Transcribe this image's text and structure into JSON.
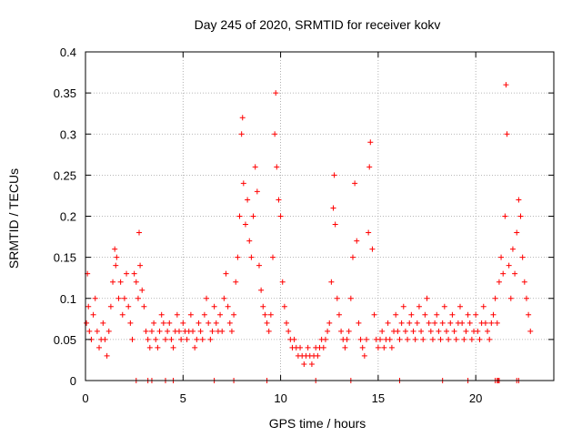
{
  "chart_data": {
    "type": "scatter",
    "title": "Day 245 of 2020, SRMTID for receiver kokv",
    "xlabel": "GPS time / hours",
    "ylabel": "SRMTID / TECUs",
    "xlim": [
      0,
      24
    ],
    "ylim": [
      0,
      0.4
    ],
    "xticks": [
      0,
      5,
      10,
      15,
      20
    ],
    "xtick_labels": [
      "0",
      "5",
      "10",
      "15",
      "20"
    ],
    "yticks": [
      0,
      0.05,
      0.1,
      0.15,
      0.2,
      0.25,
      0.3,
      0.35,
      0.4
    ],
    "ytick_labels": [
      "0",
      "0.05",
      "0.1",
      "0.15",
      "0.2",
      "0.25",
      "0.3",
      "0.35",
      "0.4"
    ],
    "grid": true,
    "marker": "+",
    "colors": {
      "marker": "#ff0000",
      "grid": "#a0a0a0",
      "axis": "#000000"
    },
    "series": [
      {
        "name": "SRMTID",
        "description_note": "dense cloud of points mostly 0.02-0.12 TECU with bursts near 1.5, 2.8, 8, 9.7, 12.8, 14.5 and 21.5 hours",
        "points": [
          [
            0.05,
            0.07
          ],
          [
            0.1,
            0.13
          ],
          [
            0.15,
            0.09
          ],
          [
            0.2,
            0.06
          ],
          [
            0.3,
            0.05
          ],
          [
            0.4,
            0.08
          ],
          [
            0.5,
            0.1
          ],
          [
            0.6,
            0.06
          ],
          [
            0.7,
            0.04
          ],
          [
            0.8,
            0.05
          ],
          [
            0.9,
            0.07
          ],
          [
            1.0,
            0.05
          ],
          [
            1.1,
            0.03
          ],
          [
            1.2,
            0.06
          ],
          [
            1.3,
            0.09
          ],
          [
            1.4,
            0.12
          ],
          [
            1.5,
            0.16
          ],
          [
            1.55,
            0.14
          ],
          [
            1.6,
            0.15
          ],
          [
            1.7,
            0.1
          ],
          [
            1.8,
            0.12
          ],
          [
            1.9,
            0.08
          ],
          [
            2.0,
            0.1
          ],
          [
            2.1,
            0.13
          ],
          [
            2.2,
            0.09
          ],
          [
            2.3,
            0.07
          ],
          [
            2.4,
            0.05
          ],
          [
            2.5,
            0.13
          ],
          [
            2.6,
            0.12
          ],
          [
            2.7,
            0.1
          ],
          [
            2.75,
            0.18
          ],
          [
            2.8,
            0.14
          ],
          [
            2.9,
            0.11
          ],
          [
            3.0,
            0.09
          ],
          [
            3.1,
            0.06
          ],
          [
            3.2,
            0.05
          ],
          [
            3.3,
            0.04
          ],
          [
            3.4,
            0.06
          ],
          [
            3.5,
            0.07
          ],
          [
            3.6,
            0.05
          ],
          [
            3.7,
            0.04
          ],
          [
            3.8,
            0.06
          ],
          [
            3.9,
            0.08
          ],
          [
            4.0,
            0.07
          ],
          [
            4.1,
            0.05
          ],
          [
            4.2,
            0.06
          ],
          [
            4.3,
            0.07
          ],
          [
            4.4,
            0.05
          ],
          [
            4.5,
            0.04
          ],
          [
            4.6,
            0.06
          ],
          [
            4.7,
            0.08
          ],
          [
            4.8,
            0.06
          ],
          [
            4.9,
            0.05
          ],
          [
            5.0,
            0.07
          ],
          [
            5.1,
            0.06
          ],
          [
            5.2,
            0.05
          ],
          [
            5.3,
            0.06
          ],
          [
            5.4,
            0.08
          ],
          [
            5.5,
            0.06
          ],
          [
            5.6,
            0.04
          ],
          [
            5.7,
            0.05
          ],
          [
            5.8,
            0.07
          ],
          [
            5.9,
            0.06
          ],
          [
            6.0,
            0.05
          ],
          [
            6.1,
            0.08
          ],
          [
            6.2,
            0.1
          ],
          [
            6.3,
            0.07
          ],
          [
            6.4,
            0.05
          ],
          [
            6.5,
            0.06
          ],
          [
            6.6,
            0.09
          ],
          [
            6.7,
            0.07
          ],
          [
            6.8,
            0.06
          ],
          [
            6.9,
            0.08
          ],
          [
            7.0,
            0.06
          ],
          [
            7.1,
            0.1
          ],
          [
            7.2,
            0.13
          ],
          [
            7.3,
            0.09
          ],
          [
            7.4,
            0.07
          ],
          [
            7.5,
            0.06
          ],
          [
            7.6,
            0.08
          ],
          [
            7.7,
            0.12
          ],
          [
            7.8,
            0.15
          ],
          [
            7.9,
            0.2
          ],
          [
            8.0,
            0.3
          ],
          [
            8.05,
            0.32
          ],
          [
            8.1,
            0.24
          ],
          [
            8.2,
            0.19
          ],
          [
            8.3,
            0.22
          ],
          [
            8.4,
            0.17
          ],
          [
            8.5,
            0.15
          ],
          [
            8.6,
            0.2
          ],
          [
            8.7,
            0.26
          ],
          [
            8.8,
            0.23
          ],
          [
            8.9,
            0.14
          ],
          [
            9.0,
            0.11
          ],
          [
            9.1,
            0.09
          ],
          [
            9.2,
            0.08
          ],
          [
            9.3,
            0.07
          ],
          [
            9.4,
            0.06
          ],
          [
            9.5,
            0.08
          ],
          [
            9.6,
            0.15
          ],
          [
            9.7,
            0.3
          ],
          [
            9.75,
            0.35
          ],
          [
            9.8,
            0.26
          ],
          [
            9.9,
            0.22
          ],
          [
            10.0,
            0.2
          ],
          [
            10.1,
            0.12
          ],
          [
            10.2,
            0.09
          ],
          [
            10.3,
            0.07
          ],
          [
            10.4,
            0.06
          ],
          [
            10.5,
            0.05
          ],
          [
            10.6,
            0.04
          ],
          [
            10.7,
            0.05
          ],
          [
            10.8,
            0.04
          ],
          [
            10.9,
            0.03
          ],
          [
            11.0,
            0.04
          ],
          [
            11.1,
            0.03
          ],
          [
            11.2,
            0.02
          ],
          [
            11.3,
            0.03
          ],
          [
            11.4,
            0.04
          ],
          [
            11.5,
            0.03
          ],
          [
            11.6,
            0.02
          ],
          [
            11.7,
            0.03
          ],
          [
            11.8,
            0.04
          ],
          [
            11.9,
            0.03
          ],
          [
            12.0,
            0.04
          ],
          [
            12.1,
            0.05
          ],
          [
            12.2,
            0.04
          ],
          [
            12.3,
            0.05
          ],
          [
            12.4,
            0.06
          ],
          [
            12.5,
            0.07
          ],
          [
            12.6,
            0.12
          ],
          [
            12.7,
            0.21
          ],
          [
            12.75,
            0.25
          ],
          [
            12.8,
            0.19
          ],
          [
            12.9,
            0.1
          ],
          [
            13.0,
            0.08
          ],
          [
            13.1,
            0.06
          ],
          [
            13.2,
            0.05
          ],
          [
            13.3,
            0.04
          ],
          [
            13.4,
            0.05
          ],
          [
            13.5,
            0.06
          ],
          [
            13.6,
            0.1
          ],
          [
            13.7,
            0.15
          ],
          [
            13.8,
            0.24
          ],
          [
            13.9,
            0.17
          ],
          [
            14.0,
            0.07
          ],
          [
            14.1,
            0.05
          ],
          [
            14.2,
            0.04
          ],
          [
            14.3,
            0.03
          ],
          [
            14.4,
            0.05
          ],
          [
            14.5,
            0.18
          ],
          [
            14.55,
            0.26
          ],
          [
            14.6,
            0.29
          ],
          [
            14.7,
            0.16
          ],
          [
            14.8,
            0.08
          ],
          [
            14.9,
            0.05
          ],
          [
            15.0,
            0.04
          ],
          [
            15.1,
            0.05
          ],
          [
            15.2,
            0.06
          ],
          [
            15.3,
            0.04
          ],
          [
            15.4,
            0.05
          ],
          [
            15.5,
            0.07
          ],
          [
            15.6,
            0.05
          ],
          [
            15.7,
            0.04
          ],
          [
            15.8,
            0.06
          ],
          [
            15.9,
            0.08
          ],
          [
            16.0,
            0.06
          ],
          [
            16.1,
            0.05
          ],
          [
            16.2,
            0.07
          ],
          [
            16.3,
            0.09
          ],
          [
            16.4,
            0.06
          ],
          [
            16.5,
            0.05
          ],
          [
            16.6,
            0.07
          ],
          [
            16.7,
            0.08
          ],
          [
            16.8,
            0.06
          ],
          [
            16.9,
            0.05
          ],
          [
            17.0,
            0.07
          ],
          [
            17.1,
            0.09
          ],
          [
            17.2,
            0.06
          ],
          [
            17.3,
            0.05
          ],
          [
            17.4,
            0.08
          ],
          [
            17.5,
            0.1
          ],
          [
            17.6,
            0.07
          ],
          [
            17.7,
            0.06
          ],
          [
            17.8,
            0.05
          ],
          [
            17.9,
            0.07
          ],
          [
            18.0,
            0.08
          ],
          [
            18.1,
            0.06
          ],
          [
            18.2,
            0.05
          ],
          [
            18.3,
            0.07
          ],
          [
            18.4,
            0.09
          ],
          [
            18.5,
            0.06
          ],
          [
            18.6,
            0.05
          ],
          [
            18.7,
            0.07
          ],
          [
            18.8,
            0.08
          ],
          [
            18.9,
            0.06
          ],
          [
            19.0,
            0.05
          ],
          [
            19.1,
            0.07
          ],
          [
            19.2,
            0.09
          ],
          [
            19.3,
            0.07
          ],
          [
            19.4,
            0.05
          ],
          [
            19.5,
            0.06
          ],
          [
            19.6,
            0.08
          ],
          [
            19.7,
            0.07
          ],
          [
            19.8,
            0.05
          ],
          [
            19.9,
            0.06
          ],
          [
            20.0,
            0.08
          ],
          [
            20.1,
            0.06
          ],
          [
            20.2,
            0.05
          ],
          [
            20.3,
            0.07
          ],
          [
            20.4,
            0.09
          ],
          [
            20.5,
            0.07
          ],
          [
            20.6,
            0.06
          ],
          [
            20.7,
            0.05
          ],
          [
            20.8,
            0.07
          ],
          [
            20.9,
            0.08
          ],
          [
            21.0,
            0.1
          ],
          [
            21.1,
            0.07
          ],
          [
            21.2,
            0.12
          ],
          [
            21.3,
            0.15
          ],
          [
            21.4,
            0.13
          ],
          [
            21.5,
            0.2
          ],
          [
            21.55,
            0.36
          ],
          [
            21.6,
            0.3
          ],
          [
            21.7,
            0.14
          ],
          [
            21.8,
            0.1
          ],
          [
            21.9,
            0.16
          ],
          [
            22.0,
            0.13
          ],
          [
            22.1,
            0.18
          ],
          [
            22.2,
            0.22
          ],
          [
            22.3,
            0.2
          ],
          [
            22.4,
            0.15
          ],
          [
            22.5,
            0.12
          ],
          [
            22.6,
            0.1
          ],
          [
            22.7,
            0.08
          ],
          [
            22.8,
            0.06
          ]
        ]
      }
    ],
    "zero_markers_x": [
      2.6,
      3.2,
      3.4,
      4.1,
      4.5,
      6.6,
      7.6,
      9.3,
      11.8,
      13.6,
      16.1,
      18.3,
      19.6,
      21.0,
      21.1,
      21.15,
      21.2,
      22.1,
      22.2
    ]
  }
}
